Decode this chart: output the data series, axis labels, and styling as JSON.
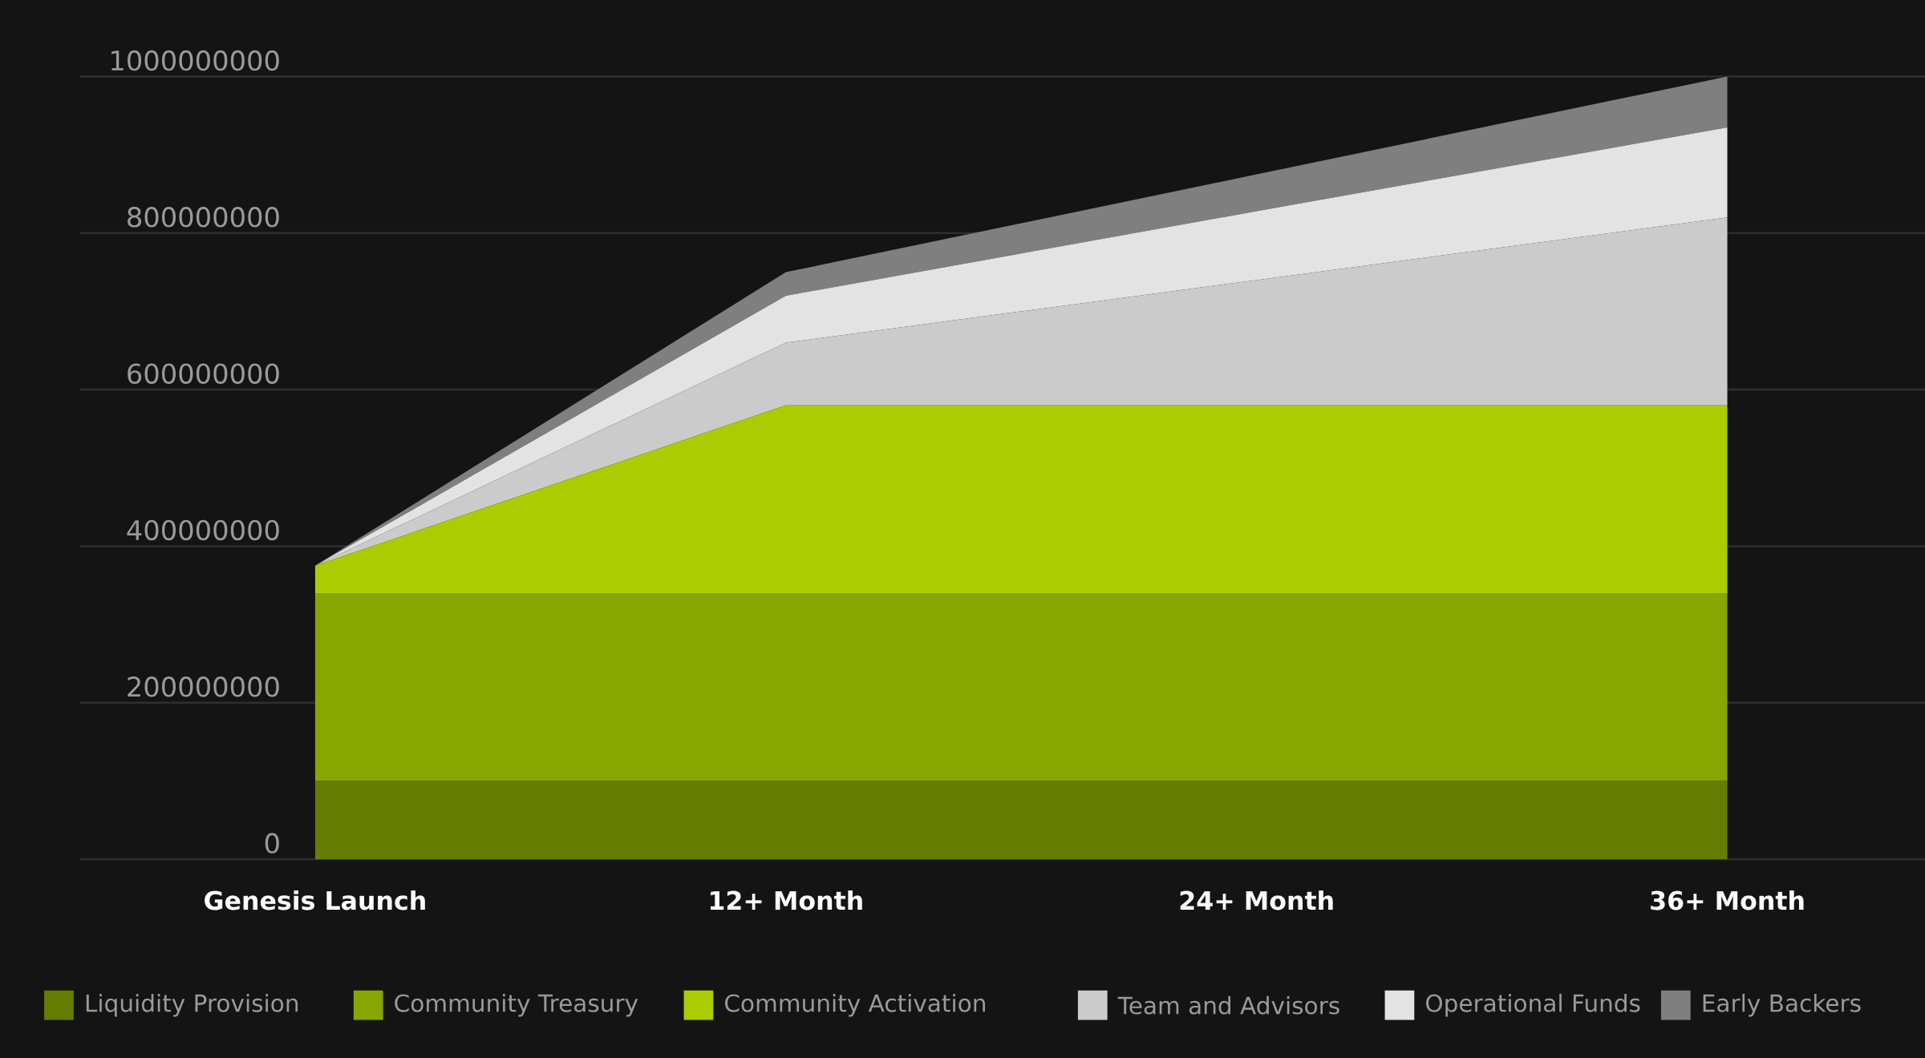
{
  "chart_data": {
    "type": "area",
    "stacked": true,
    "categories": [
      "Genesis Launch",
      "12+ Month",
      "24+ Month",
      "36+ Month"
    ],
    "ylim": [
      0,
      1000000000
    ],
    "yticks": [
      0,
      200000000,
      400000000,
      600000000,
      800000000,
      1000000000
    ],
    "grid": "y",
    "legend": "bottom",
    "series": [
      {
        "name": "Liquidity Provision",
        "color": "#647d00",
        "values": [
          100000000,
          100000000,
          100000000,
          100000000
        ]
      },
      {
        "name": "Community Treasury",
        "color": "#88a500",
        "values": [
          240000000,
          240000000,
          240000000,
          240000000
        ]
      },
      {
        "name": "Community Activation",
        "color": "#aacc00",
        "values": [
          35000000,
          240000000,
          240000000,
          240000000
        ]
      },
      {
        "name": "Team and Advisors",
        "color": "#cbcbcc",
        "values": [
          0,
          80000000,
          160000000,
          240000000
        ]
      },
      {
        "name": "Operational Funds",
        "color": "#e3e3e3",
        "values": [
          0,
          60000000,
          88000000,
          115000000
        ]
      },
      {
        "name": "Early Backers",
        "color": "#7f7f7f",
        "values": [
          0,
          30000000,
          47000000,
          65000000
        ]
      }
    ]
  }
}
